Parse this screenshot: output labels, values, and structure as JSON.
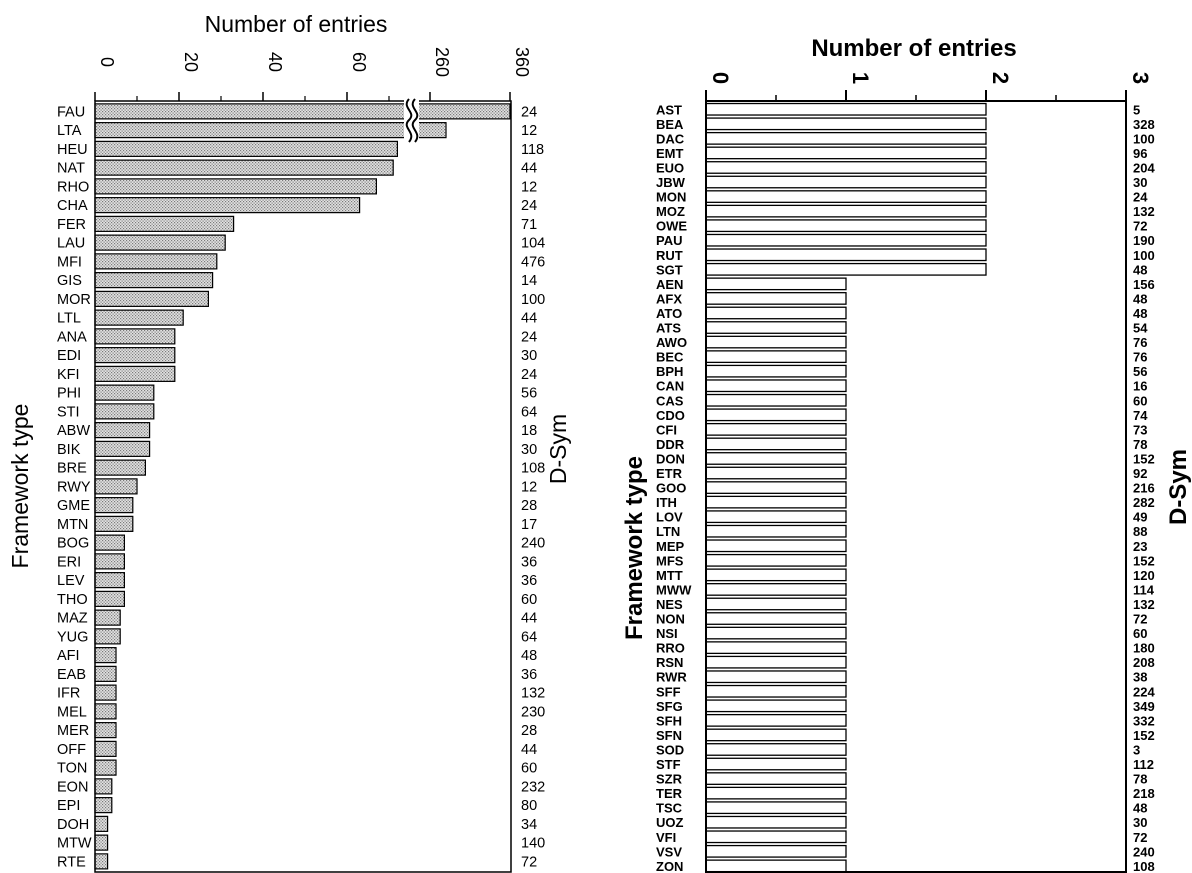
{
  "chart_data": [
    {
      "type": "bar",
      "orientation": "horizontal",
      "title": "Number of entries",
      "ylabel": "Framework type",
      "right_label": "D-Sym",
      "x_ticks": [
        "0",
        "20",
        "40",
        "60",
        "260",
        "360"
      ],
      "axis_break": true,
      "categories": [
        "FAU",
        "LTA",
        "HEU",
        "NAT",
        "RHO",
        "CHA",
        "FER",
        "LAU",
        "MFI",
        "GIS",
        "MOR",
        "LTL",
        "ANA",
        "EDI",
        "KFI",
        "PHI",
        "STI",
        "ABW",
        "BIK",
        "BRE",
        "RWY",
        "GME",
        "MTN",
        "BOG",
        "ERI",
        "LEV",
        "THO",
        "MAZ",
        "YUG",
        "AFI",
        "EAB",
        "IFR",
        "MEL",
        "MER",
        "OFF",
        "TON",
        "EON",
        "EPI",
        "DOH",
        "MTW",
        "RTE"
      ],
      "values": [
        360,
        280,
        72,
        71,
        67,
        63,
        33,
        31,
        29,
        28,
        27,
        21,
        19,
        19,
        19,
        14,
        14,
        13,
        13,
        12,
        10,
        9,
        9,
        7,
        7,
        7,
        7,
        6,
        6,
        5,
        5,
        5,
        5,
        5,
        5,
        5,
        4,
        4,
        3,
        3,
        3
      ],
      "d_sym": [
        "24",
        "12",
        "118",
        "44",
        "12",
        "24",
        "71",
        "104",
        "476",
        "14",
        "100",
        "44",
        "24",
        "30",
        "24",
        "56",
        "64",
        "18",
        "30",
        "108",
        "12",
        "28",
        "17",
        "240",
        "36",
        "36",
        "60",
        "44",
        "64",
        "48",
        "36",
        "132",
        "230",
        "28",
        "44",
        "60",
        "232",
        "80",
        "34",
        "140",
        "72"
      ]
    },
    {
      "type": "bar",
      "orientation": "horizontal",
      "title": "Number of entries",
      "ylabel": "Framework type",
      "right_label": "D-Sym",
      "xlim": [
        0,
        3
      ],
      "x_ticks": [
        "0",
        "1",
        "2",
        "3"
      ],
      "categories": [
        "AST",
        "BEA",
        "DAC",
        "EMT",
        "EUO",
        "JBW",
        "MON",
        "MOZ",
        "OWE",
        "PAU",
        "RUT",
        "SGT",
        "AEN",
        "AFX",
        "ATO",
        "ATS",
        "AWO",
        "BEC",
        "BPH",
        "CAN",
        "CAS",
        "CDO",
        "CFI",
        "DDR",
        "DON",
        "ETR",
        "GOO",
        "ITH",
        "LOV",
        "LTN",
        "MEP",
        "MFS",
        "MTT",
        "MWW",
        "NES",
        "NON",
        "NSI",
        "RRO",
        "RSN",
        "RWR",
        "SFF",
        "SFG",
        "SFH",
        "SFN",
        "SOD",
        "STF",
        "SZR",
        "TER",
        "TSC",
        "UOZ",
        "VFI",
        "VSV",
        "ZON"
      ],
      "values": [
        2,
        2,
        2,
        2,
        2,
        2,
        2,
        2,
        2,
        2,
        2,
        2,
        1,
        1,
        1,
        1,
        1,
        1,
        1,
        1,
        1,
        1,
        1,
        1,
        1,
        1,
        1,
        1,
        1,
        1,
        1,
        1,
        1,
        1,
        1,
        1,
        1,
        1,
        1,
        1,
        1,
        1,
        1,
        1,
        1,
        1,
        1,
        1,
        1,
        1,
        1,
        1,
        1
      ],
      "d_sym": [
        "5",
        "328",
        "100",
        "96",
        "204",
        "30",
        "24",
        "132",
        "72",
        "190",
        "100",
        "48",
        "156",
        "48",
        "48",
        "54",
        "76",
        "76",
        "56",
        "16",
        "60",
        "74",
        "73",
        "78",
        "152",
        "92",
        "216",
        "282",
        "49",
        "88",
        "23",
        "152",
        "120",
        "114",
        "132",
        "72",
        "60",
        "180",
        "208",
        "38",
        "224",
        "349",
        "332",
        "152",
        "3",
        "112",
        "78",
        "218",
        "48",
        "30",
        "72",
        "240",
        "108"
      ]
    }
  ]
}
